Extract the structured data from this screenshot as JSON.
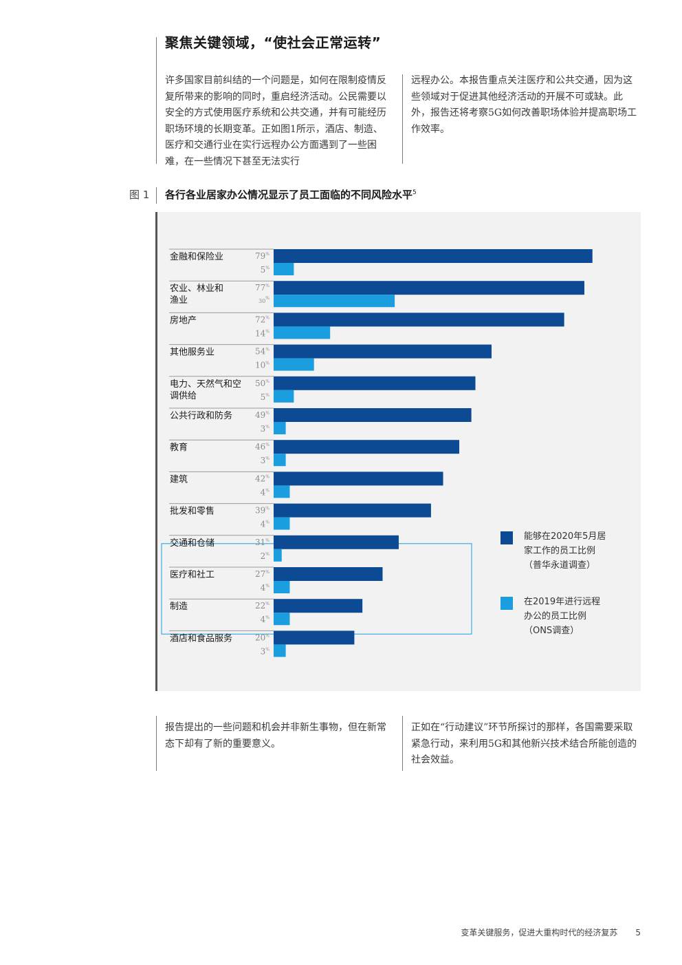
{
  "section_title": "聚焦关键领域，“使社会正常运转”",
  "intro_left": "许多国家目前纠结的一个问题是，如何在限制疫情反复所带来的影响的同时，重启经济活动。公民需要以安全的方式使用医疗系统和公共交通，并有可能经历职场环境的长期变革。正如图1所示，酒店、制造、医疗和交通行业在实行远程办公方面遇到了一些困难，在一些情况下甚至无法实行",
  "intro_right": "远程办公。本报告重点关注医疗和公共交通，因为这些领域对于促进其他经济活动的开展不可或缺。此外，报告还将考察5G如何改善职场体验并提高职场工作效率。",
  "figure_label": "图 1",
  "figure_title": "各行各业居家办公情况显示了员工面临的不同风险水平",
  "figure_title_note": "5",
  "chart_data": {
    "type": "bar",
    "orientation": "horizontal",
    "categories": [
      "金融和保险业",
      "农业、林业和渔业",
      "房地产",
      "其他服务业",
      "电力、天然气和空调供给",
      "公共行政和防务",
      "教育",
      "建筑",
      "批发和零售",
      "交通和仓储",
      "医疗和社工",
      "制造",
      "酒店和食品服务"
    ],
    "category_lines": [
      [
        "金融和保险业"
      ],
      [
        "农业、林业和",
        "渔业"
      ],
      [
        "房地产"
      ],
      [
        "其他服务业"
      ],
      [
        "电力、天然气和空",
        "调供给"
      ],
      [
        "公共行政和防务"
      ],
      [
        "教育"
      ],
      [
        "建筑"
      ],
      [
        "批发和零售"
      ],
      [
        "交通和仓储"
      ],
      [
        "医疗和社工"
      ],
      [
        "制造"
      ],
      [
        "酒店和食品服务"
      ]
    ],
    "series": [
      {
        "name": "能够在2020年5月居家工作的员工比例（普华永道调查）",
        "values": [
          79,
          77,
          72,
          54,
          50,
          49,
          46,
          42,
          39,
          31,
          27,
          22,
          20
        ],
        "color": "#0d4a94"
      },
      {
        "name": "在2019年进行远程办公的员工比例（ONS调查）",
        "values": [
          5,
          30,
          14,
          10,
          5,
          3,
          3,
          4,
          4,
          2,
          4,
          4,
          3
        ],
        "color": "#1a9ee0"
      }
    ],
    "unit": "%",
    "xlim": [
      0,
      100
    ],
    "highlighted_categories": [
      "交通和仓储",
      "医疗和社工",
      "制造"
    ],
    "highlight_color": "#1a9ee0"
  },
  "legend": {
    "series1_lines": [
      "能够在2020年5月居",
      "家工作的员工比例",
      "（普华永道调查）"
    ],
    "series2_lines": [
      "在2019年进行远程",
      "办公的员工比例",
      "（ONS调查）"
    ]
  },
  "outro_left": "报告提出的一些问题和机会并非新生事物，但在新常态下却有了新的重要意义。",
  "outro_right": "正如在“行动建议”环节所探讨的那样，各国需要采取紧急行动，来利用5G和其他新兴技术结合所能创造的社会效益。",
  "footer": {
    "text": "变革关键服务，促进大重构时代的经济复苏",
    "page": "5"
  }
}
